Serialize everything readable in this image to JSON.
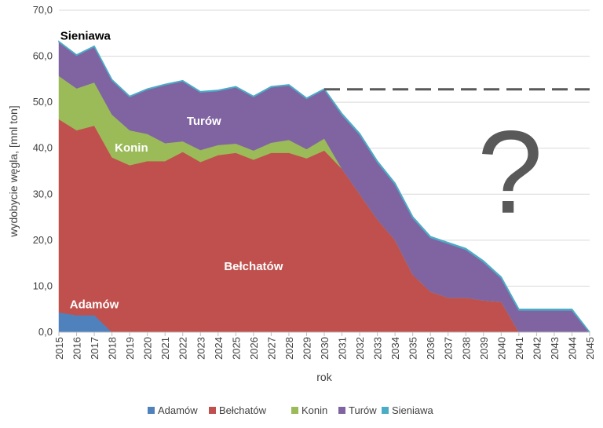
{
  "chart_data": {
    "type": "area",
    "stacked": true,
    "title": "",
    "xlabel": "rok",
    "ylabel": "wydobycie węgla, [mnl ton]",
    "ylim": [
      0,
      70
    ],
    "yticks": [
      "0,0",
      "10,0",
      "20,0",
      "30,0",
      "40,0",
      "50,0",
      "60,0",
      "70,0"
    ],
    "grid": "horizontal",
    "legend_position": "bottom",
    "x": [
      "2015",
      "2016",
      "2017",
      "2018",
      "2019",
      "2020",
      "2021",
      "2022",
      "2023",
      "2024",
      "2025",
      "2026",
      "2027",
      "2028",
      "2029",
      "2030",
      "2031",
      "2032",
      "2033",
      "2034",
      "2035",
      "2036",
      "2037",
      "2038",
      "2039",
      "2040",
      "2041",
      "2042",
      "2043",
      "2044",
      "2045"
    ],
    "series": [
      {
        "name": "Adamów",
        "color": "#4F81BD",
        "values": [
          4.3,
          3.7,
          3.7,
          0,
          0,
          0,
          0,
          0,
          0,
          0,
          0,
          0,
          0,
          0,
          0,
          0,
          0,
          0,
          0,
          0,
          0,
          0,
          0,
          0,
          0,
          0,
          0,
          0,
          0,
          0,
          0
        ]
      },
      {
        "name": "Bełchatów",
        "color": "#C0504D",
        "values": [
          42.0,
          40.2,
          41.2,
          38.0,
          36.3,
          37.2,
          37.2,
          39.2,
          37.0,
          38.5,
          39.0,
          37.5,
          39.0,
          39.0,
          37.8,
          39.5,
          35.5,
          30.0,
          24.5,
          20.0,
          12.5,
          8.8,
          7.5,
          7.5,
          6.9,
          6.6,
          0,
          0,
          0,
          0,
          0
        ]
      },
      {
        "name": "Konin",
        "color": "#9BBB59",
        "values": [
          9.4,
          9.1,
          9.4,
          9.3,
          7.6,
          5.9,
          3.9,
          2.3,
          2.6,
          2.2,
          2.0,
          2.0,
          2.2,
          2.8,
          2.0,
          2.6,
          0,
          0,
          0,
          0,
          0,
          0,
          0,
          0,
          0,
          0,
          0,
          0,
          0,
          0,
          0
        ]
      },
      {
        "name": "Turów",
        "color": "#8064A2",
        "values": [
          7.4,
          7.2,
          7.8,
          7.5,
          7.3,
          9.7,
          12.7,
          13.1,
          12.6,
          11.8,
          12.3,
          11.7,
          12.1,
          11.9,
          11.0,
          10.7,
          11.8,
          13.0,
          12.5,
          12.2,
          12.4,
          11.8,
          11.8,
          10.5,
          8.4,
          5.2,
          4.8,
          4.8,
          4.8,
          4.8,
          0
        ]
      },
      {
        "name": "Sieniawa",
        "color": "#4BACC6",
        "values": [
          0.1,
          0.1,
          0.1,
          0.1,
          0.1,
          0.1,
          0.1,
          0.1,
          0.1,
          0.1,
          0.1,
          0.1,
          0.1,
          0.1,
          0.1,
          0.1,
          0.2,
          0.2,
          0.2,
          0.2,
          0.2,
          0.2,
          0.2,
          0.2,
          0.2,
          0.2,
          0.2,
          0.2,
          0.2,
          0.2,
          0
        ]
      }
    ],
    "reference_line": {
      "value": 52.8,
      "from": "2030",
      "to": "2045",
      "style": "dashed",
      "color": "#595959"
    },
    "annotations": [
      {
        "text": "Sieniawa",
        "color": "#000000",
        "series": "Sieniawa"
      },
      {
        "text": "Turów",
        "color": "#ffffff",
        "series": "Turów"
      },
      {
        "text": "Konin",
        "color": "#ffffff",
        "series": "Konin"
      },
      {
        "text": "Bełchatów",
        "color": "#ffffff",
        "series": "Bełchatów"
      },
      {
        "text": "Adamów",
        "color": "#ffffff",
        "series": "Adamów"
      },
      {
        "text": "?",
        "color": "#595959",
        "series": ""
      }
    ]
  }
}
